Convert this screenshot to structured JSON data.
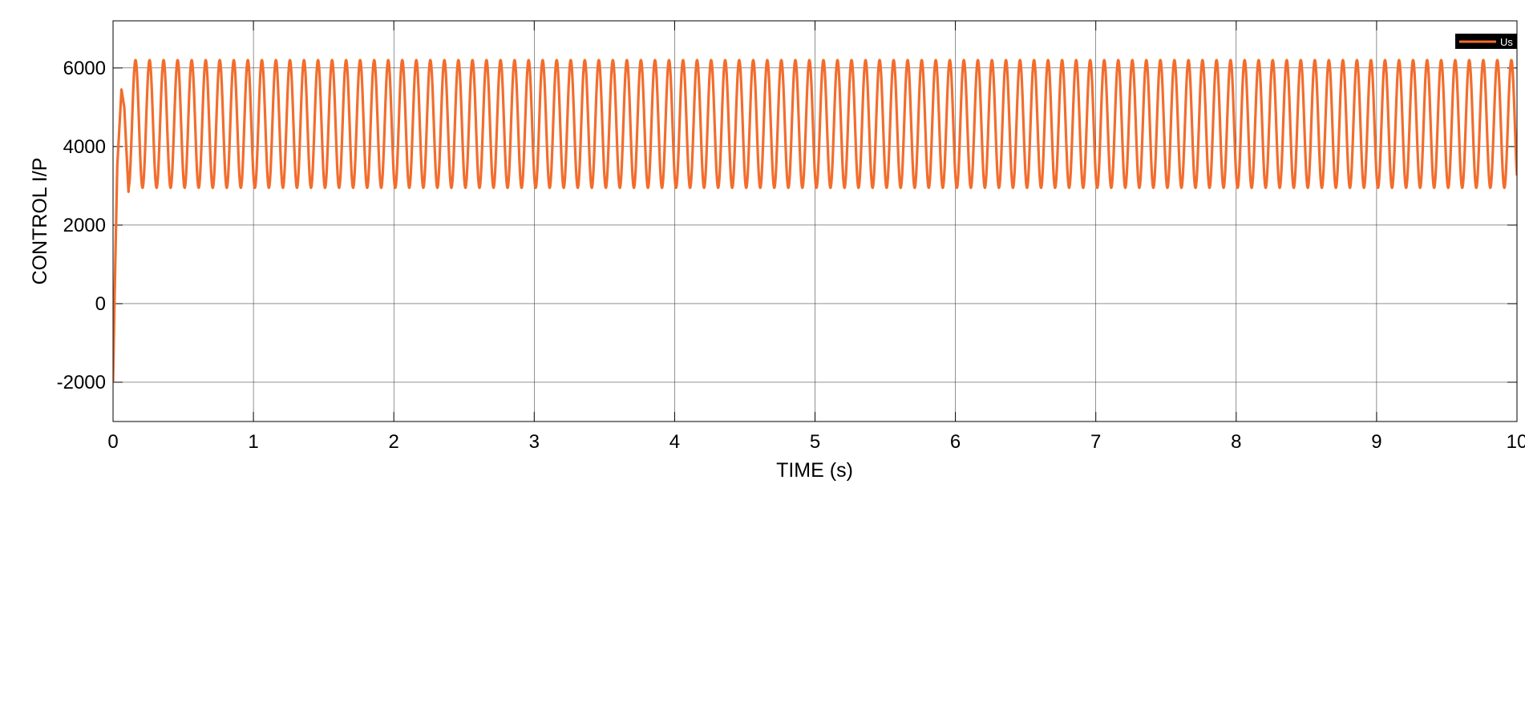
{
  "chart_data": {
    "type": "line",
    "title": "",
    "xlabel": "TIME (s)",
    "ylabel": "CONTROL I/P",
    "xlim": [
      0,
      10
    ],
    "ylim": [
      -3000,
      7200
    ],
    "xticks": [
      "0",
      "1",
      "2",
      "3",
      "4",
      "5",
      "6",
      "7",
      "8",
      "9",
      "10"
    ],
    "yticks": [
      "-2000",
      "0",
      "2000",
      "4000",
      "6000"
    ],
    "grid": true,
    "legend": {
      "position": "top-right",
      "background": "#000000"
    },
    "series": [
      {
        "name": "Us",
        "color": "#f26d2d",
        "start": {
          "x": [
            0,
            0.01,
            0.03,
            0.06,
            0.08,
            0.11
          ],
          "y": [
            -2000,
            0,
            3500,
            5450,
            5000,
            2850
          ]
        },
        "steady": {
          "from": 0.11,
          "min": 2950,
          "max": 6200,
          "period": 0.1
        }
      }
    ]
  }
}
